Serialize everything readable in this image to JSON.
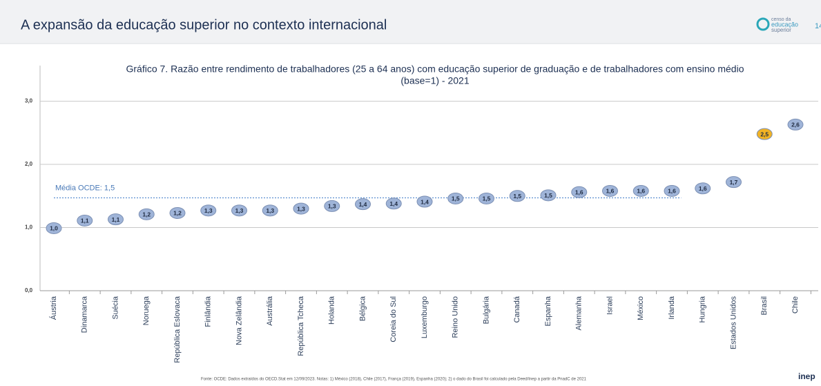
{
  "header": {
    "title": "A expansão da educação superior no contexto internacional",
    "logo": [
      "censo da",
      "educação",
      "superior"
    ],
    "page": "14"
  },
  "chart_data": {
    "type": "scatter",
    "title": [
      "Gráfico 7. Razão entre rendimento de trabalhadores (25 a 64 anos) com educação superior de graduação e de trabalhadores com ensino médio",
      "(base=1) - 2021"
    ],
    "categories": [
      "Áustria",
      "Dinamarca",
      "Suécia",
      "Noruega",
      "República Eslovaca",
      "Finlândia",
      "Nova Zelândia",
      "Austrália",
      "República Tcheca",
      "Holanda",
      "Bélgica",
      "Coreia do Sul",
      "Luxemburgo",
      "Reino Unido",
      "Bulgária",
      "Canadá",
      "Espanha",
      "Alemanha",
      "Israel",
      "México",
      "Irlanda",
      "Hungria",
      "Estados Unidos",
      "Brasil",
      "Chile"
    ],
    "values": [
      0.99,
      1.11,
      1.13,
      1.21,
      1.23,
      1.27,
      1.27,
      1.27,
      1.3,
      1.34,
      1.37,
      1.38,
      1.41,
      1.46,
      1.46,
      1.5,
      1.51,
      1.56,
      1.58,
      1.58,
      1.58,
      1.62,
      1.72,
      2.48,
      2.63
    ],
    "value_labels": [
      "1,0",
      "1,1",
      "1,1",
      "1,2",
      "1,2",
      "1,3",
      "1,3",
      "1,3",
      "1,3",
      "1,3",
      "1,4",
      "1,4",
      "1,4",
      "1,5",
      "1,5",
      "1,5",
      "1,5",
      "1,6",
      "1,6",
      "1,6",
      "1,6",
      "1,6",
      "1,7",
      "2,5",
      "2,6"
    ],
    "colors": [
      "#9fb4d8",
      "#9fb4d8",
      "#9fb4d8",
      "#9fb4d8",
      "#9fb4d8",
      "#9fb4d8",
      "#9fb4d8",
      "#9fb4d8",
      "#9fb4d8",
      "#9fb4d8",
      "#9fb4d8",
      "#9fb4d8",
      "#9fb4d8",
      "#9fb4d8",
      "#9fb4d8",
      "#9fb4d8",
      "#9fb4d8",
      "#9fb4d8",
      "#9fb4d8",
      "#9fb4d8",
      "#9fb4d8",
      "#9fb4d8",
      "#9fb4d8",
      "#f2b324",
      "#9fb4d8"
    ],
    "ylim": [
      0,
      3.05
    ],
    "yticks": [
      {
        "value": 0,
        "label": "0,0"
      },
      {
        "value": 1,
        "label": "1,0"
      },
      {
        "value": 2,
        "label": "2,0"
      },
      {
        "value": 3,
        "label": "3,0"
      }
    ],
    "grid": true,
    "reference_line": {
      "value": 1.47,
      "label": "Média OCDE: 1,5",
      "color": "#5b8fd0"
    }
  },
  "footer": {
    "source": "Fonte: OCDE: Dados extraídos do OECD.Stat em 12/09/2023. Notas: 1) México (2018), Chile (2017), França (2019), Espanha (2020); 2) o dado do Brasil foi calculado pela Deed/Inep a partir da PnadC de 2021",
    "logo": "inep"
  }
}
